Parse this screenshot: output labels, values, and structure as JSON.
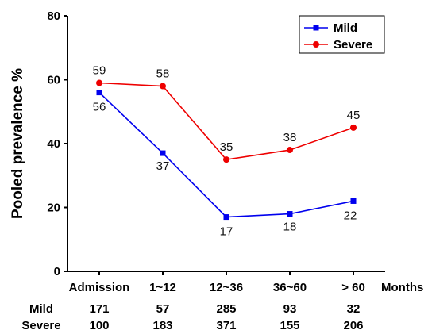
{
  "chart_data": {
    "type": "line",
    "title": "",
    "ylabel": "Pooled prevalence %",
    "xlabel": "Months",
    "ylim": [
      0,
      80
    ],
    "yticks": [
      0,
      20,
      40,
      60,
      80
    ],
    "categories": [
      "Admission",
      "1~12",
      "12~36",
      "36~60",
      "> 60"
    ],
    "grid": false,
    "legend_position": "top-right",
    "series": [
      {
        "name": "Mild",
        "color": "#0000ee",
        "marker": "square",
        "values": [
          56,
          37,
          17,
          18,
          22
        ],
        "labels": [
          "56",
          "37",
          "17",
          "18",
          "22"
        ]
      },
      {
        "name": "Severe",
        "color": "#ee0000",
        "marker": "circle",
        "values": [
          59,
          58,
          35,
          38,
          45
        ],
        "labels": [
          "59",
          "58",
          "35",
          "38",
          "45"
        ]
      }
    ],
    "counts": [
      {
        "name": "Mild",
        "values": [
          "171",
          "57",
          "285",
          "93",
          "32"
        ]
      },
      {
        "name": "Severe",
        "values": [
          "100",
          "183",
          "371",
          "155",
          "206"
        ]
      }
    ]
  }
}
